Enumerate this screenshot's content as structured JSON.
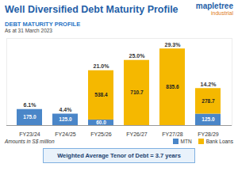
{
  "chart_data": {
    "type": "bar",
    "title": "Well Diversified Debt Maturity Profile",
    "subtitle": "DEBT MATURITY PROFILE",
    "date_note": "As at 31 March 2023",
    "logo": [
      "mapletree",
      "industrial"
    ],
    "caption": "Amounts in S$ million",
    "footer": "Weighted Average Tenor of Debt = 3.7 years",
    "categories": [
      "FY23/24",
      "FY24/25",
      "FY25/26",
      "FY26/27",
      "FY27/28",
      "FY28/29"
    ],
    "series": [
      {
        "name": "MTN",
        "color": "#4a86c8",
        "values": [
          175.0,
          125.0,
          60.0,
          null,
          null,
          125.0
        ],
        "value_labels": [
          "175.0",
          "125.0",
          "60.0",
          null,
          null,
          "125.0"
        ]
      },
      {
        "name": "Bank Loans",
        "color": "#f5b800",
        "values": [
          null,
          null,
          538.4,
          710.7,
          835.6,
          278.7
        ],
        "value_labels": [
          null,
          null,
          "538.4",
          "710.7",
          "835.6",
          "278.7"
        ]
      }
    ],
    "shares": [
      6.1,
      4.4,
      21.0,
      25.0,
      29.3,
      14.2
    ],
    "share_labels": [
      "6.1%",
      "4.4%",
      "21.0%",
      "25.0%",
      "29.3%",
      "14.2%"
    ],
    "ylim": [
      0,
      950
    ],
    "yticks": [],
    "grid": false,
    "stacked": true,
    "data_labels": true,
    "tick_labels": "x",
    "legend": "bottom"
  }
}
